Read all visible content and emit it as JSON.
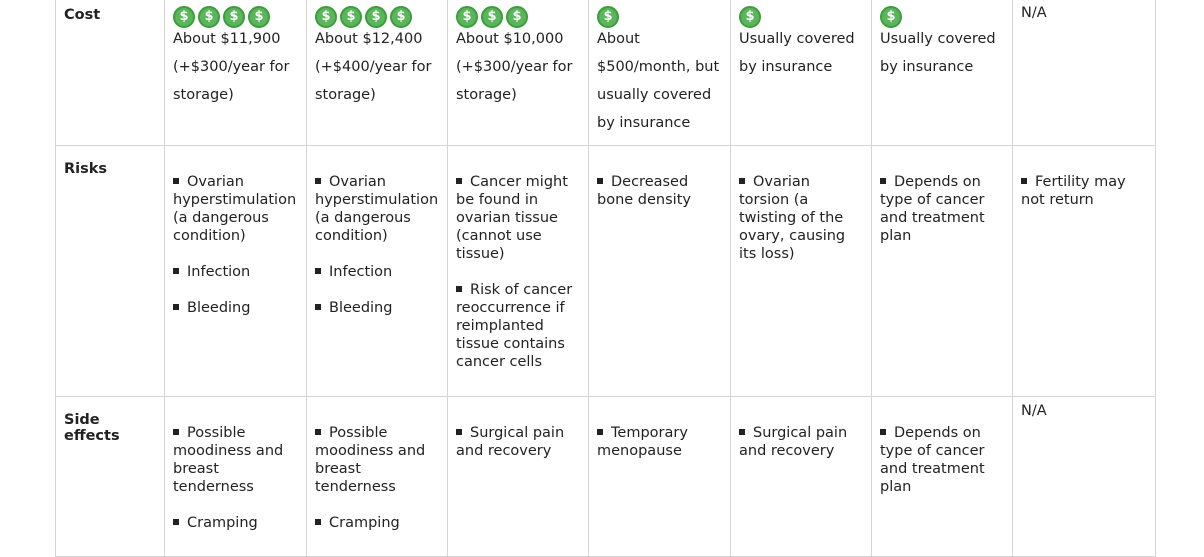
{
  "rows": {
    "cost": {
      "label": "Cost",
      "cells": [
        {
          "icons": 4,
          "text": [
            "About $11,900",
            "(+$300/year for",
            "storage)"
          ]
        },
        {
          "icons": 4,
          "text": [
            "About $12,400",
            "(+$400/year for",
            "storage)"
          ]
        },
        {
          "icons": 3,
          "text": [
            "About $10,000",
            "(+$300/year for",
            "storage)"
          ]
        },
        {
          "icons": 1,
          "text": [
            "About",
            "$500/month, but",
            "usually covered",
            "by insurance"
          ]
        },
        {
          "icons": 1,
          "text": [
            "Usually covered",
            "by insurance"
          ]
        },
        {
          "icons": 1,
          "text": [
            "Usually covered",
            "by insurance"
          ]
        },
        {
          "na": "N/A"
        }
      ]
    },
    "risks": {
      "label": "Risks",
      "cells": [
        [
          "Ovarian hyperstimulation (a dangerous condition)",
          "Infection",
          "Bleeding"
        ],
        [
          "Ovarian hyperstimulation (a dangerous condition)",
          "Infection",
          "Bleeding"
        ],
        [
          "Cancer might be found in ovarian tissue (cannot use tissue)",
          "Risk of cancer reoccurrence if reimplanted tissue contains cancer cells"
        ],
        [
          "Decreased bone density"
        ],
        [
          "Ovarian torsion (a twisting of the ovary, causing its loss)"
        ],
        [
          "Depends on type of cancer and treatment plan"
        ],
        [
          "Fertility may not return"
        ]
      ]
    },
    "side_effects": {
      "label": "Side effects",
      "cells": [
        [
          "Possible moodiness and breast tenderness",
          "Cramping"
        ],
        [
          "Possible moodiness and breast tenderness",
          "Cramping"
        ],
        [
          "Surgical pain and recovery"
        ],
        [
          "Temporary menopause"
        ],
        [
          "Surgical pain and recovery"
        ],
        [
          "Depends on type of cancer and treatment plan"
        ],
        "N/A"
      ]
    }
  },
  "icon": {
    "name": "dollar-coin-icon",
    "glyph": "$",
    "color": "#5ab65a"
  }
}
